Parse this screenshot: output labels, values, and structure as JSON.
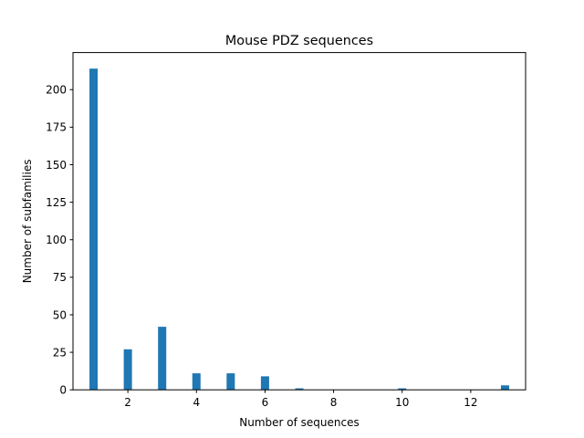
{
  "chart_data": {
    "type": "bar",
    "title": "Mouse PDZ sequences",
    "xlabel": "Number of sequences",
    "ylabel": "Number of subfamilies",
    "x": [
      1,
      2,
      3,
      4,
      5,
      6,
      7,
      10,
      13
    ],
    "values": [
      214,
      27,
      42,
      11,
      11,
      9,
      1,
      1,
      3
    ],
    "xlim": [
      0.4,
      13.6
    ],
    "ylim": [
      0,
      224.7
    ],
    "xticks": [
      2,
      4,
      6,
      8,
      10,
      12
    ],
    "xtick_labels": [
      "2",
      "4",
      "6",
      "8",
      "10",
      "12"
    ],
    "yticks": [
      0,
      25,
      50,
      75,
      100,
      125,
      150,
      175,
      200
    ],
    "ytick_labels": [
      "0",
      "25",
      "50",
      "75",
      "100",
      "125",
      "150",
      "175",
      "200"
    ],
    "bar_color": "#1f77b4",
    "grid": false,
    "legend": false
  }
}
